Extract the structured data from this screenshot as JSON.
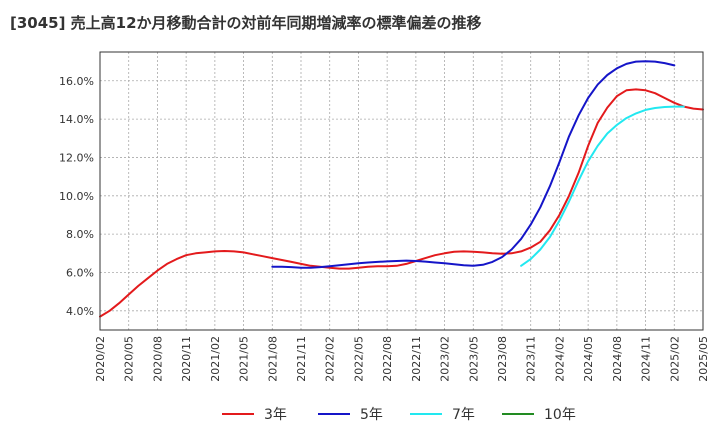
{
  "chart_data": {
    "type": "line",
    "title": "[3045]  売上高12か月移動合計の対前年同期増減率の標準偏差の推移",
    "xlabel": "",
    "ylabel": "",
    "ylim": [
      3.0,
      17.5
    ],
    "y_ticks": [
      4.0,
      6.0,
      8.0,
      10.0,
      12.0,
      14.0,
      16.0
    ],
    "y_tick_labels": [
      "4.0%",
      "6.0%",
      "8.0%",
      "10.0%",
      "12.0%",
      "14.0%",
      "16.0%"
    ],
    "x_tick_labels": [
      "2020/02",
      "2020/05",
      "2020/08",
      "2020/11",
      "2021/02",
      "2021/05",
      "2021/08",
      "2021/11",
      "2022/02",
      "2022/05",
      "2022/08",
      "2022/11",
      "2023/02",
      "2023/05",
      "2023/08",
      "2023/11",
      "2024/02",
      "2024/05",
      "2024/08",
      "2024/11",
      "2025/02",
      "2025/05"
    ],
    "grid": true,
    "legend_position": "bottom",
    "series": [
      {
        "name": "3年",
        "color": "#e31a1c",
        "start_index": 0,
        "values": [
          3.7,
          4.0,
          4.4,
          4.85,
          5.3,
          5.7,
          6.1,
          6.45,
          6.7,
          6.9,
          7.0,
          7.05,
          7.1,
          7.12,
          7.1,
          7.05,
          6.95,
          6.85,
          6.75,
          6.65,
          6.55,
          6.45,
          6.35,
          6.3,
          6.25,
          6.2,
          6.2,
          6.25,
          6.3,
          6.32,
          6.33,
          6.35,
          6.45,
          6.6,
          6.75,
          6.9,
          7.0,
          7.08,
          7.1,
          7.08,
          7.05,
          7.0,
          6.98,
          7.0,
          7.1,
          7.3,
          7.6,
          8.2,
          9.0,
          10.0,
          11.2,
          12.6,
          13.8,
          14.6,
          15.2,
          15.5,
          15.55,
          15.5,
          15.35,
          15.1,
          14.85,
          14.65,
          14.55,
          14.5
        ]
      },
      {
        "name": "5年",
        "color": "#1515c8",
        "start_index": 18,
        "values": [
          6.3,
          6.3,
          6.28,
          6.25,
          6.25,
          6.28,
          6.33,
          6.38,
          6.43,
          6.48,
          6.52,
          6.55,
          6.58,
          6.6,
          6.62,
          6.6,
          6.57,
          6.52,
          6.48,
          6.43,
          6.38,
          6.35,
          6.4,
          6.55,
          6.8,
          7.2,
          7.75,
          8.5,
          9.4,
          10.5,
          11.75,
          13.1,
          14.2,
          15.1,
          15.8,
          16.3,
          16.65,
          16.88,
          17.0,
          17.02,
          17.0,
          16.92,
          16.8
        ]
      },
      {
        "name": "7年",
        "color": "#22e8f0",
        "start_index": 44,
        "values": [
          6.35,
          6.7,
          7.2,
          7.85,
          8.7,
          9.7,
          10.8,
          11.8,
          12.6,
          13.25,
          13.7,
          14.05,
          14.3,
          14.48,
          14.58,
          14.63,
          14.65,
          14.65
        ]
      },
      {
        "name": "10年",
        "color": "#228b22",
        "start_index": 0,
        "values": []
      }
    ]
  }
}
